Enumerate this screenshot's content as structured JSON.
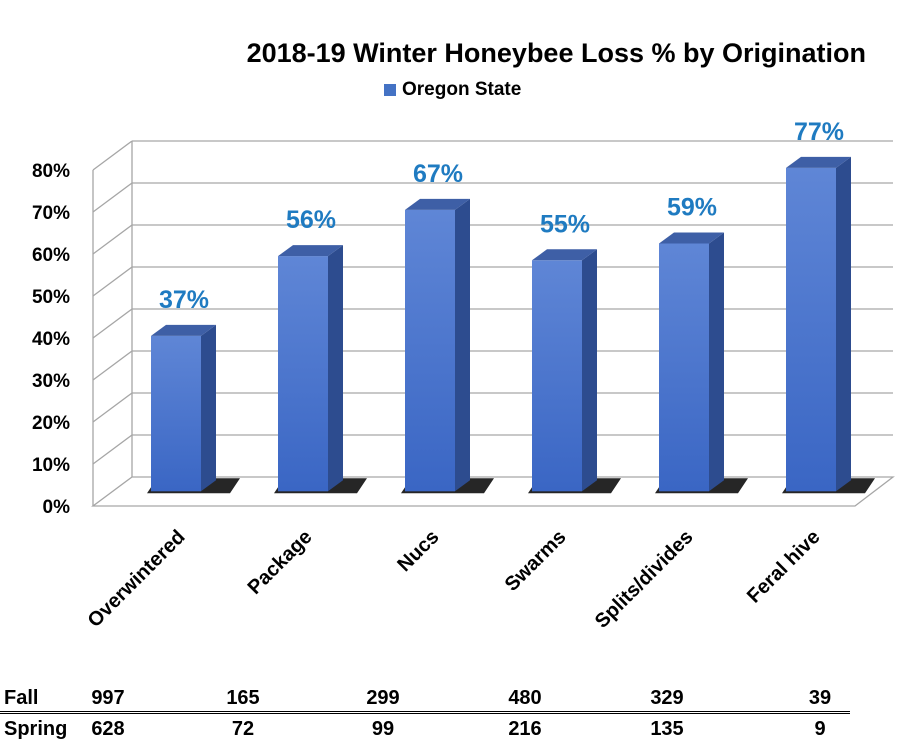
{
  "chart_data": {
    "type": "bar",
    "title": "2018-19 Winter Honeybee Loss % by Origination",
    "categories": [
      "Overwintered",
      "Package",
      "Nucs",
      "Swarms",
      "Splits/divides",
      "Feral hive"
    ],
    "series": [
      {
        "name": "Oregon State",
        "values": [
          37,
          56,
          67,
          55,
          59,
          77
        ],
        "data_labels": [
          "37%",
          "56%",
          "67%",
          "55%",
          "59%",
          "77%"
        ]
      }
    ],
    "ylim": [
      0,
      80
    ],
    "y_ticks": [
      "0%",
      "10%",
      "20%",
      "30%",
      "40%",
      "50%",
      "60%",
      "70%",
      "80%"
    ],
    "xlabel": "",
    "ylabel": "",
    "grid": true,
    "style": "3d-column",
    "legend_position": "top",
    "colors": {
      "bar": "#4472C4",
      "data_label": "#1F7BC1",
      "grid": "#A6A6A6"
    }
  },
  "table": {
    "rows": [
      {
        "label": "Fall",
        "values": [
          "997",
          "165",
          "299",
          "480",
          "329",
          "39"
        ]
      },
      {
        "label": "Spring",
        "values": [
          "628",
          "72",
          "99",
          "216",
          "135",
          "9"
        ]
      }
    ]
  }
}
